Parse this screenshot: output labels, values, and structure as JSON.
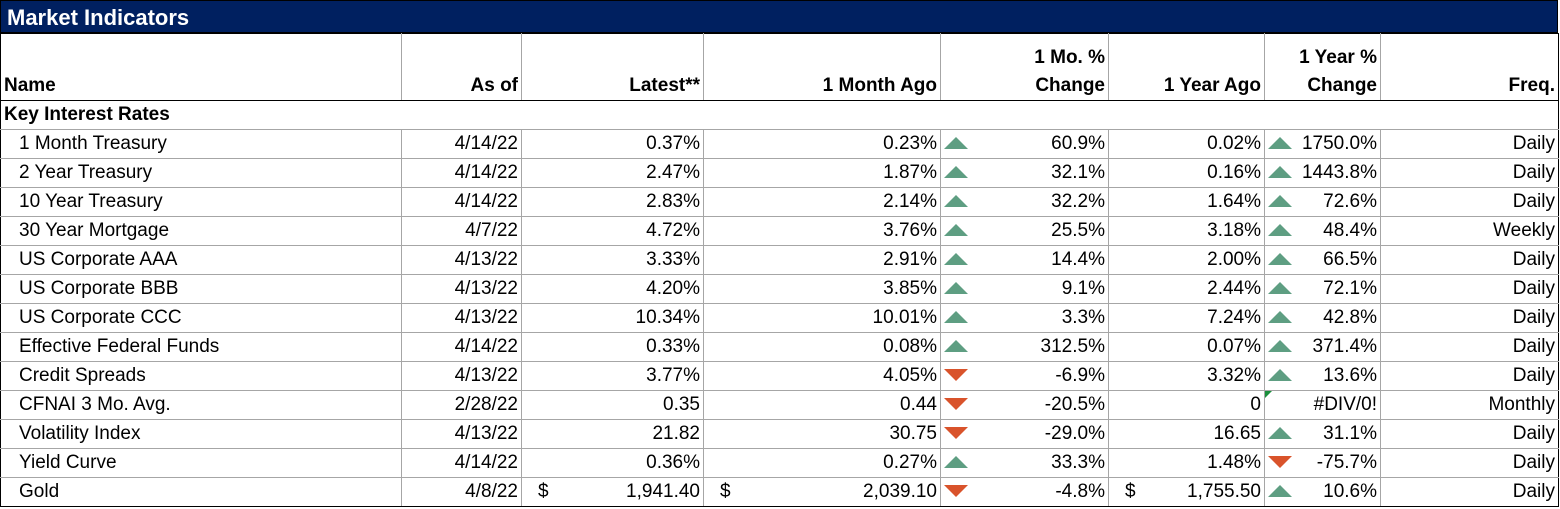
{
  "title": "Market Indicators",
  "columns": {
    "name": "Name",
    "as_of": "As of",
    "latest": "Latest**",
    "month_ago": "1 Month Ago",
    "mo_change_1": "1 Mo. %",
    "mo_change_2": "Change",
    "year_ago": "1 Year Ago",
    "yr_change_1": "1 Year %",
    "yr_change_2": "Change",
    "freq": "Freq."
  },
  "section": "Key Interest Rates",
  "colors": {
    "header_bg": "#002060",
    "up_arrow": "#5e9e82",
    "down_arrow": "#d9532b"
  },
  "rows": [
    {
      "name": "1 Month Treasury",
      "as_of": "4/14/22",
      "latest": "0.37%",
      "month_ago": "0.23%",
      "mo_dir": "up",
      "mo_change": "60.9%",
      "year_ago": "0.02%",
      "yr_dir": "up",
      "yr_change": "1750.0%",
      "freq": "Daily"
    },
    {
      "name": "2 Year Treasury",
      "as_of": "4/14/22",
      "latest": "2.47%",
      "month_ago": "1.87%",
      "mo_dir": "up",
      "mo_change": "32.1%",
      "year_ago": "0.16%",
      "yr_dir": "up",
      "yr_change": "1443.8%",
      "freq": "Daily"
    },
    {
      "name": "10 Year Treasury",
      "as_of": "4/14/22",
      "latest": "2.83%",
      "month_ago": "2.14%",
      "mo_dir": "up",
      "mo_change": "32.2%",
      "year_ago": "1.64%",
      "yr_dir": "up",
      "yr_change": "72.6%",
      "freq": "Daily"
    },
    {
      "name": "30 Year Mortgage",
      "as_of": "4/7/22",
      "latest": "4.72%",
      "month_ago": "3.76%",
      "mo_dir": "up",
      "mo_change": "25.5%",
      "year_ago": "3.18%",
      "yr_dir": "up",
      "yr_change": "48.4%",
      "freq": "Weekly"
    },
    {
      "name": "US Corporate AAA",
      "as_of": "4/13/22",
      "latest": "3.33%",
      "month_ago": "2.91%",
      "mo_dir": "up",
      "mo_change": "14.4%",
      "year_ago": "2.00%",
      "yr_dir": "up",
      "yr_change": "66.5%",
      "freq": "Daily"
    },
    {
      "name": "US Corporate BBB",
      "as_of": "4/13/22",
      "latest": "4.20%",
      "month_ago": "3.85%",
      "mo_dir": "up",
      "mo_change": "9.1%",
      "year_ago": "2.44%",
      "yr_dir": "up",
      "yr_change": "72.1%",
      "freq": "Daily"
    },
    {
      "name": "US Corporate CCC",
      "as_of": "4/13/22",
      "latest": "10.34%",
      "month_ago": "10.01%",
      "mo_dir": "up",
      "mo_change": "3.3%",
      "year_ago": "7.24%",
      "yr_dir": "up",
      "yr_change": "42.8%",
      "freq": "Daily"
    },
    {
      "name": "Effective Federal Funds",
      "as_of": "4/14/22",
      "latest": "0.33%",
      "month_ago": "0.08%",
      "mo_dir": "up",
      "mo_change": "312.5%",
      "year_ago": "0.07%",
      "yr_dir": "up",
      "yr_change": "371.4%",
      "freq": "Daily"
    },
    {
      "name": "Credit Spreads",
      "as_of": "4/13/22",
      "latest": "3.77%",
      "month_ago": "4.05%",
      "mo_dir": "down",
      "mo_change": "-6.9%",
      "year_ago": "3.32%",
      "yr_dir": "up",
      "yr_change": "13.6%",
      "freq": "Daily"
    },
    {
      "name": "CFNAI 3 Mo. Avg.",
      "as_of": "2/28/22",
      "latest": "0.35",
      "month_ago": "0.44",
      "mo_dir": "down",
      "mo_change": "-20.5%",
      "year_ago": "0",
      "yr_dir": "none",
      "yr_change": "#DIV/0!",
      "freq": "Monthly",
      "year_ago_flag": true
    },
    {
      "name": "Volatility Index",
      "as_of": "4/13/22",
      "latest": "21.82",
      "month_ago": "30.75",
      "mo_dir": "down",
      "mo_change": "-29.0%",
      "year_ago": "16.65",
      "yr_dir": "up",
      "yr_change": "31.1%",
      "freq": "Daily"
    },
    {
      "name": "Yield Curve",
      "as_of": "4/14/22",
      "latest": "0.36%",
      "month_ago": "0.27%",
      "mo_dir": "up",
      "mo_change": "33.3%",
      "year_ago": "1.48%",
      "yr_dir": "down",
      "yr_change": "-75.7%",
      "freq": "Daily"
    },
    {
      "name": "Gold",
      "as_of": "4/8/22",
      "latest": "1,941.40",
      "month_ago": "2,039.10",
      "mo_dir": "down",
      "mo_change": "-4.8%",
      "year_ago": "1,755.50",
      "yr_dir": "up",
      "yr_change": "10.6%",
      "freq": "Daily",
      "currency": "$"
    }
  ]
}
